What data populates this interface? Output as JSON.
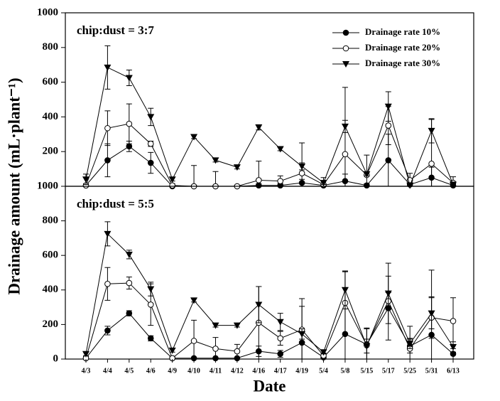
{
  "chart_data": [
    {
      "type": "line",
      "annotation": "chip:dust = 3:7",
      "ylabel": "Drainage amount (mL·plant⁻¹)",
      "ylim": [
        0,
        1000
      ],
      "yticks": [
        200,
        400,
        600,
        800,
        1000
      ],
      "legend": "upper right",
      "series": [
        {
          "name": "Drainage rate 10%",
          "color": "#000000",
          "marker": "filled-circle",
          "values": [
            5,
            150,
            230,
            135,
            0,
            0,
            0,
            0,
            5,
            5,
            20,
            5,
            30,
            5,
            150,
            10,
            50,
            5
          ],
          "errors": [
            5,
            95,
            30,
            60,
            5,
            5,
            5,
            5,
            10,
            10,
            20,
            10,
            40,
            10,
            150,
            10,
            60,
            10
          ]
        },
        {
          "name": "Drainage rate 20%",
          "color": "#000000",
          "marker": "open-circle",
          "values": [
            5,
            335,
            360,
            245,
            5,
            0,
            0,
            0,
            35,
            30,
            75,
            10,
            185,
            65,
            350,
            35,
            130,
            20
          ],
          "errors": [
            10,
            100,
            115,
            15,
            10,
            120,
            85,
            5,
            110,
            30,
            175,
            40,
            385,
            115,
            110,
            40,
            255,
            35
          ]
        },
        {
          "name": "Drainage rate 30%",
          "color": "#000000",
          "marker": "filled-triangle-down",
          "values": [
            40,
            685,
            625,
            400,
            40,
            285,
            150,
            110,
            340,
            215,
            115,
            20,
            345,
            70,
            460,
            5,
            320,
            10
          ],
          "errors": [
            30,
            125,
            45,
            50,
            10,
            10,
            10,
            10,
            15,
            10,
            20,
            10,
            35,
            10,
            85,
            15,
            70,
            10
          ]
        }
      ]
    },
    {
      "type": "line",
      "annotation": "chip:dust = 5:5",
      "xlabel": "Date",
      "categories": [
        "4/3",
        "4/4",
        "4/5",
        "4/6",
        "4/9",
        "4/10",
        "4/11",
        "4/12",
        "4/16",
        "4/17",
        "4/19",
        "5/4",
        "5/8",
        "5/15",
        "5/17",
        "5/25",
        "5/31",
        "6/13"
      ],
      "ylim": [
        0,
        1000
      ],
      "yticks": [
        0,
        200,
        400,
        600,
        800,
        1000
      ],
      "series": [
        {
          "name": "Drainage rate 10%",
          "color": "#000000",
          "marker": "filled-circle",
          "values": [
            5,
            165,
            265,
            120,
            5,
            5,
            5,
            5,
            45,
            30,
            95,
            10,
            145,
            85,
            295,
            75,
            140,
            30
          ],
          "errors": [
            5,
            25,
            15,
            15,
            5,
            5,
            5,
            5,
            30,
            20,
            210,
            10,
            360,
            90,
            185,
            40,
            375,
            30
          ]
        },
        {
          "name": "Drainage rate 20%",
          "color": "#000000",
          "marker": "open-circle",
          "values": [
            5,
            435,
            440,
            315,
            5,
            105,
            60,
            45,
            210,
            120,
            170,
            20,
            325,
            80,
            335,
            60,
            240,
            220
          ],
          "errors": [
            10,
            95,
            35,
            120,
            10,
            120,
            65,
            40,
            210,
            40,
            180,
            15,
            185,
            100,
            50,
            130,
            120,
            135
          ]
        },
        {
          "name": "Drainage rate 30%",
          "color": "#000000",
          "marker": "filled-triangle-down",
          "values": [
            30,
            725,
            605,
            405,
            50,
            340,
            195,
            195,
            315,
            215,
            145,
            40,
            400,
            75,
            380,
            90,
            265,
            70
          ],
          "errors": [
            10,
            70,
            25,
            40,
            10,
            10,
            10,
            10,
            105,
            50,
            30,
            10,
            110,
            40,
            175,
            30,
            90,
            30
          ]
        }
      ]
    }
  ]
}
